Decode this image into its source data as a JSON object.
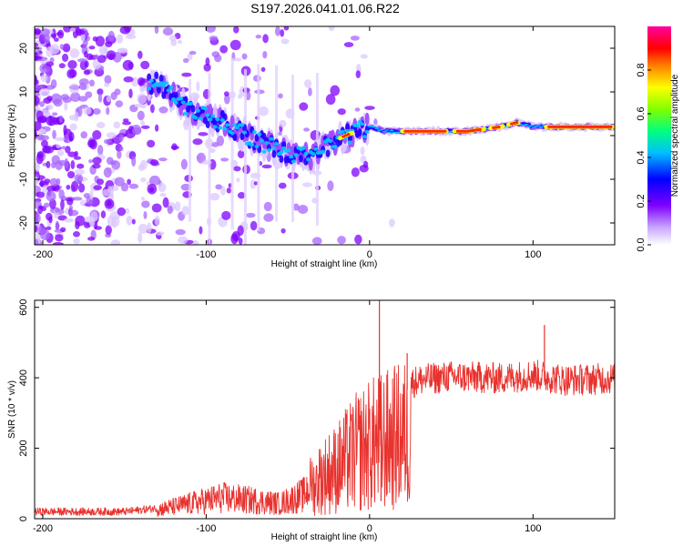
{
  "title": "S197.2026.041.01.06.R22",
  "chart_data": [
    {
      "type": "heatmap",
      "name": "spectrogram",
      "xlabel": "Height of straight line (km)",
      "ylabel": "Frequency (Hz)",
      "xlim": [
        -205,
        150
      ],
      "ylim": [
        -25,
        25
      ],
      "xticks": [
        -200,
        -100,
        0,
        100
      ],
      "xtick_labels": [
        "-200",
        "-100",
        "0",
        "100"
      ],
      "yticks": [
        -20,
        -10,
        0,
        10,
        20
      ],
      "ytick_labels": [
        "-20",
        "-10",
        "0",
        "10",
        "20"
      ],
      "colorbar": {
        "label": "Normalized spectral amplitude",
        "range": [
          0,
          1
        ],
        "ticks": [
          0,
          0.2,
          0.4,
          0.6,
          0.8
        ],
        "tick_labels": [
          "0.0",
          "0.2",
          "0.4",
          "0.6",
          "0.8"
        ],
        "colors": [
          "#ffffff",
          "#7f00ff",
          "#0000ff",
          "#00bfff",
          "#00ff80",
          "#80ff00",
          "#ffff00",
          "#ff8000",
          "#ff0000",
          "#ff00a0"
        ]
      },
      "ridge": {
        "x": [
          -130,
          -110,
          -90,
          -70,
          -50,
          -35,
          -25,
          -15,
          0,
          10,
          20,
          40,
          60,
          80,
          90,
          100,
          110,
          130,
          150
        ],
        "y": [
          12,
          6,
          3,
          -1,
          -4,
          -5,
          -2,
          0,
          2,
          1,
          1,
          1,
          1,
          2,
          3,
          2,
          2,
          2,
          2
        ]
      }
    },
    {
      "type": "line",
      "name": "snr",
      "xlabel": "Height of straight line (km)",
      "ylabel": "SNR (10 * v/v)",
      "xlim": [
        -205,
        150
      ],
      "ylim": [
        0,
        620
      ],
      "xticks": [
        -200,
        -100,
        0,
        100
      ],
      "xtick_labels": [
        "-200",
        "-100",
        "0",
        "100"
      ],
      "yticks": [
        0,
        200,
        400,
        600
      ],
      "ytick_labels": [
        "0",
        "200",
        "400",
        "600"
      ],
      "color": "#e8322e",
      "envelope": {
        "x": [
          -205,
          -150,
          -130,
          -110,
          -90,
          -70,
          -55,
          -40,
          -30,
          -20,
          -10,
          0,
          10,
          20,
          30,
          50,
          80,
          100,
          120,
          150
        ],
        "y": [
          20,
          20,
          30,
          50,
          70,
          60,
          50,
          80,
          180,
          220,
          280,
          320,
          340,
          360,
          380,
          390,
          385,
          395,
          380,
          385
        ]
      },
      "spikes": [
        {
          "x": 6,
          "y": 640
        },
        {
          "x": 7,
          "y": 50
        },
        {
          "x": 107,
          "y": 550
        },
        {
          "x": 23,
          "y": 470
        }
      ]
    }
  ]
}
